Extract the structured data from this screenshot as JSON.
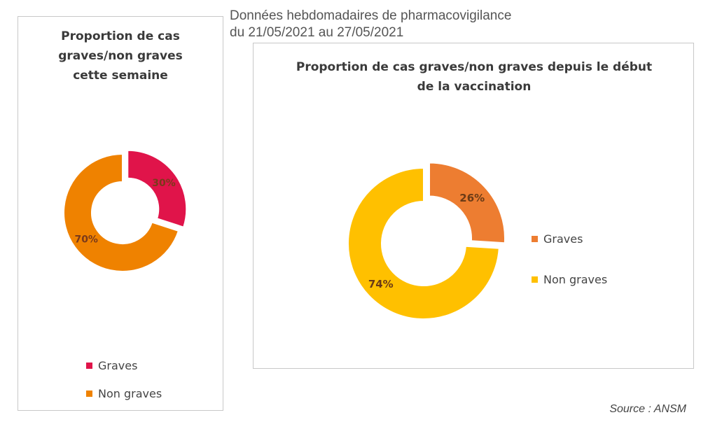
{
  "header": {
    "line1": "Données hebdomadaires de pharmacovigilance",
    "line2": "du 21/05/2021 au 27/05/2021"
  },
  "source": "Source : ANSM",
  "chart_data": [
    {
      "type": "pie",
      "style": "donut",
      "title": "Proportion de cas graves/non graves cette semaine",
      "categories": [
        "Graves",
        "Non graves"
      ],
      "values": [
        30,
        70
      ],
      "data_labels": [
        "30%",
        "70%"
      ],
      "colors": [
        "#e0144a",
        "#ef8200"
      ],
      "legend_position": "bottom",
      "exploded_slice": "Graves"
    },
    {
      "type": "pie",
      "style": "donut",
      "title": "Proportion de cas graves/non graves depuis le début de la vaccination",
      "categories": [
        "Graves",
        "Non graves"
      ],
      "values": [
        26,
        74
      ],
      "data_labels": [
        "26%",
        "74%"
      ],
      "colors": [
        "#ed7d31",
        "#ffc000"
      ],
      "legend_position": "right",
      "exploded_slice": "Graves"
    }
  ]
}
